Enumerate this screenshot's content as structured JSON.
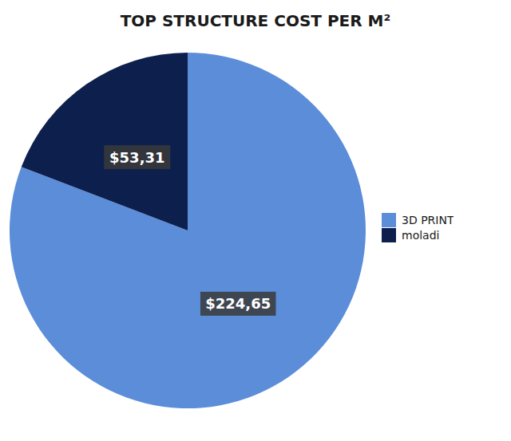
{
  "chart_data": {
    "type": "pie",
    "title": "TOP STRUCTURE COST PER M²",
    "categories": [
      "3D PRINT",
      "moladi"
    ],
    "values": [
      224.65,
      53.31
    ],
    "value_labels": [
      "$224,65",
      "$53,31"
    ],
    "colors": [
      "#5b8dd9",
      "#0d1f4c"
    ],
    "data_labels": true,
    "legend": "right"
  }
}
